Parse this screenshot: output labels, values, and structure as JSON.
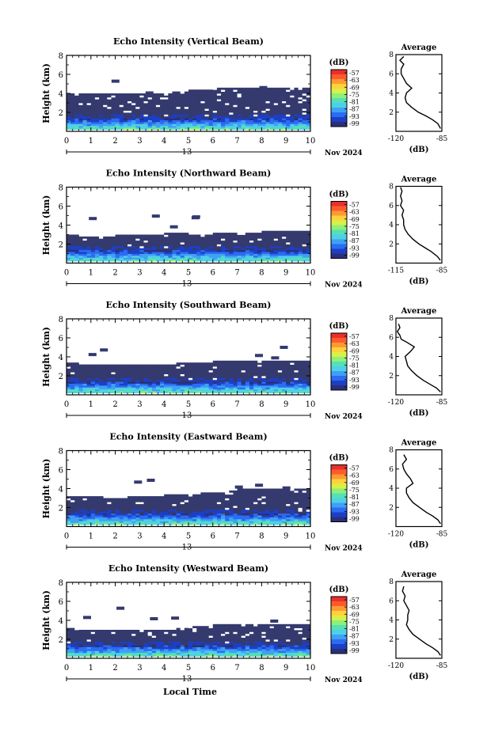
{
  "figure": {
    "time_axis_label": "Local Time",
    "date_day": "13",
    "date_month_year": "Nov 2024",
    "colorbar_unit": "(dB)",
    "avg_title": "Average",
    "avg_unit": "(dB)"
  },
  "colorbar": {
    "tick_labels": [
      "-57",
      "-63",
      "-69",
      "-75",
      "-81",
      "-87",
      "-93",
      "-99"
    ],
    "colors": [
      "#2b2f7a",
      "#1d3fc4",
      "#2b6cf2",
      "#3fa0f5",
      "#4ed0e8",
      "#56e0b5",
      "#8ef078",
      "#d8f048",
      "#ffd23c",
      "#ff9a32",
      "#ff5a2e",
      "#e8302a"
    ],
    "mask_color": "#343a6e"
  },
  "chart_data": [
    {
      "type": "heatmap",
      "title": "Echo Intensity (Vertical Beam)",
      "ylabel": "Height (km)",
      "x_ticks": [
        "0",
        "1",
        "2",
        "3",
        "4",
        "5",
        "6",
        "7",
        "8",
        "9",
        "10"
      ],
      "y_ticks": [
        "2",
        "4",
        "6",
        "8"
      ],
      "xlim": [
        0,
        10
      ],
      "ylim": [
        0,
        8
      ],
      "clim": [
        -99,
        -57
      ],
      "echo_top_km": [
        [
          0,
          4.0
        ],
        [
          0.5,
          4.0
        ],
        [
          1,
          3.9
        ],
        [
          1.5,
          3.9
        ],
        [
          2,
          3.9
        ],
        [
          2.5,
          3.9
        ],
        [
          3,
          3.9
        ],
        [
          3.5,
          4.0
        ],
        [
          4,
          3.9
        ],
        [
          4.5,
          4.1
        ],
        [
          5,
          4.2
        ],
        [
          5.5,
          4.4
        ],
        [
          6,
          4.4
        ],
        [
          6.5,
          4.5
        ],
        [
          7,
          4.5
        ],
        [
          7.5,
          4.5
        ],
        [
          8,
          4.5
        ],
        [
          8.5,
          4.6
        ],
        [
          9,
          4.6
        ],
        [
          9.5,
          4.6
        ],
        [
          10,
          4.6
        ]
      ],
      "avg_profile": {
        "xlim": [
          -120,
          -85
        ],
        "x_ticks": [
          "-120",
          "-85"
        ],
        "y_ticks": [
          "2",
          "4",
          "6",
          "8"
        ],
        "ylim": [
          0,
          8
        ],
        "points": [
          [
            -86,
            0.3
          ],
          [
            -88,
            0.8
          ],
          [
            -92,
            1.2
          ],
          [
            -97,
            1.6
          ],
          [
            -103,
            2.0
          ],
          [
            -108,
            2.5
          ],
          [
            -112,
            3.0
          ],
          [
            -113,
            3.5
          ],
          [
            -112,
            4.0
          ],
          [
            -108,
            4.5
          ],
          [
            -112,
            5.0
          ],
          [
            -114,
            5.5
          ],
          [
            -116,
            6.0
          ],
          [
            -116,
            6.5
          ],
          [
            -114,
            7.0
          ],
          [
            -117,
            7.4
          ],
          [
            -114,
            7.8
          ]
        ]
      }
    },
    {
      "type": "heatmap",
      "title": "Echo Intensity (Northward Beam)",
      "ylabel": "Height (km)",
      "x_ticks": [
        "0",
        "1",
        "2",
        "3",
        "4",
        "5",
        "6",
        "7",
        "8",
        "9",
        "10"
      ],
      "y_ticks": [
        "2",
        "4",
        "6",
        "8"
      ],
      "xlim": [
        0,
        10
      ],
      "ylim": [
        0,
        8
      ],
      "clim": [
        -99,
        -57
      ],
      "echo_top_km": [
        [
          0,
          2.9
        ],
        [
          0.5,
          2.8
        ],
        [
          1,
          2.8
        ],
        [
          1.5,
          2.8
        ],
        [
          2,
          2.8
        ],
        [
          2.5,
          2.9
        ],
        [
          3,
          2.9
        ],
        [
          3.5,
          3.0
        ],
        [
          4,
          3.0
        ],
        [
          4.5,
          3.1
        ],
        [
          5,
          3.0
        ],
        [
          5.5,
          3.0
        ],
        [
          6,
          3.0
        ],
        [
          6.5,
          3.1
        ],
        [
          7,
          3.1
        ],
        [
          7.5,
          3.2
        ],
        [
          8,
          3.2
        ],
        [
          8.5,
          3.3
        ],
        [
          9,
          3.3
        ],
        [
          9.5,
          3.3
        ],
        [
          10,
          3.3
        ]
      ],
      "avg_profile": {
        "xlim": [
          -115,
          -85
        ],
        "x_ticks": [
          "-115",
          "-85"
        ],
        "y_ticks": [
          "2",
          "4",
          "6",
          "8"
        ],
        "ylim": [
          0,
          8
        ],
        "points": [
          [
            -86,
            0.3
          ],
          [
            -88,
            0.7
          ],
          [
            -92,
            1.2
          ],
          [
            -96,
            1.6
          ],
          [
            -100,
            2.0
          ],
          [
            -104,
            2.5
          ],
          [
            -107,
            3.0
          ],
          [
            -109,
            3.5
          ],
          [
            -110,
            4.0
          ],
          [
            -110,
            4.5
          ],
          [
            -111,
            5.0
          ],
          [
            -110,
            5.5
          ],
          [
            -112,
            6.0
          ],
          [
            -111,
            6.5
          ],
          [
            -112,
            7.0
          ],
          [
            -111,
            7.5
          ],
          [
            -112,
            7.9
          ]
        ]
      }
    },
    {
      "type": "heatmap",
      "title": "Echo Intensity (Southward Beam)",
      "ylabel": "Height (km)",
      "x_ticks": [
        "0",
        "1",
        "2",
        "3",
        "4",
        "5",
        "6",
        "7",
        "8",
        "9",
        "10"
      ],
      "y_ticks": [
        "2",
        "4",
        "6",
        "8"
      ],
      "xlim": [
        0,
        10
      ],
      "ylim": [
        0,
        8
      ],
      "clim": [
        -99,
        -57
      ],
      "echo_top_km": [
        [
          0,
          3.3
        ],
        [
          0.5,
          3.2
        ],
        [
          1,
          3.2
        ],
        [
          1.5,
          3.2
        ],
        [
          2,
          3.2
        ],
        [
          2.5,
          3.2
        ],
        [
          3,
          3.2
        ],
        [
          3.5,
          3.2
        ],
        [
          4,
          3.2
        ],
        [
          4.5,
          3.2
        ],
        [
          5,
          3.3
        ],
        [
          5.5,
          3.4
        ],
        [
          6,
          3.4
        ],
        [
          6.5,
          3.5
        ],
        [
          7,
          3.5
        ],
        [
          7.5,
          3.5
        ],
        [
          8,
          3.5
        ],
        [
          8.5,
          3.5
        ],
        [
          9,
          3.5
        ],
        [
          9.5,
          3.5
        ],
        [
          10,
          3.5
        ]
      ],
      "avg_profile": {
        "xlim": [
          -120,
          -85
        ],
        "x_ticks": [
          "-120",
          "-85"
        ],
        "y_ticks": [
          "2",
          "4",
          "6",
          "8"
        ],
        "ylim": [
          0,
          8
        ],
        "points": [
          [
            -86,
            0.3
          ],
          [
            -89,
            0.7
          ],
          [
            -94,
            1.1
          ],
          [
            -99,
            1.5
          ],
          [
            -104,
            2.0
          ],
          [
            -108,
            2.5
          ],
          [
            -111,
            3.0
          ],
          [
            -112,
            3.5
          ],
          [
            -113,
            4.0
          ],
          [
            -109,
            4.5
          ],
          [
            -106,
            5.0
          ],
          [
            -112,
            5.5
          ],
          [
            -116,
            5.8
          ],
          [
            -117,
            6.2
          ],
          [
            -119,
            6.6
          ],
          [
            -117,
            7.0
          ],
          [
            -118,
            7.4
          ]
        ]
      }
    },
    {
      "type": "heatmap",
      "title": "Echo Intensity (Eastward Beam)",
      "ylabel": "Height (km)",
      "x_ticks": [
        "0",
        "1",
        "2",
        "3",
        "4",
        "5",
        "6",
        "7",
        "8",
        "9",
        "10"
      ],
      "y_ticks": [
        "2",
        "4",
        "6",
        "8"
      ],
      "xlim": [
        0,
        10
      ],
      "ylim": [
        0,
        8
      ],
      "clim": [
        -99,
        -57
      ],
      "echo_top_km": [
        [
          0,
          3.2
        ],
        [
          0.5,
          3.1
        ],
        [
          1,
          3.1
        ],
        [
          1.5,
          3.0
        ],
        [
          2,
          3.0
        ],
        [
          2.5,
          3.0
        ],
        [
          3,
          3.1
        ],
        [
          3.5,
          3.1
        ],
        [
          4,
          3.2
        ],
        [
          4.5,
          3.3
        ],
        [
          5,
          3.4
        ],
        [
          5.5,
          3.4
        ],
        [
          6,
          3.5
        ],
        [
          6.5,
          3.6
        ],
        [
          7,
          3.8
        ],
        [
          7.5,
          3.9
        ],
        [
          8,
          4.0
        ],
        [
          8.5,
          4.0
        ],
        [
          9,
          4.0
        ],
        [
          9.5,
          4.0
        ],
        [
          10,
          4.0
        ]
      ],
      "avg_profile": {
        "xlim": [
          -120,
          -85
        ],
        "x_ticks": [
          "-120",
          "-85"
        ],
        "y_ticks": [
          "2",
          "4",
          "6",
          "8"
        ],
        "ylim": [
          0,
          8
        ],
        "points": [
          [
            -86,
            0.3
          ],
          [
            -88,
            0.7
          ],
          [
            -92,
            1.1
          ],
          [
            -97,
            1.5
          ],
          [
            -102,
            2.0
          ],
          [
            -107,
            2.5
          ],
          [
            -110,
            3.0
          ],
          [
            -112,
            3.5
          ],
          [
            -112,
            4.0
          ],
          [
            -107,
            4.5
          ],
          [
            -109,
            5.0
          ],
          [
            -112,
            5.5
          ],
          [
            -114,
            6.0
          ],
          [
            -115,
            6.5
          ],
          [
            -112,
            7.0
          ],
          [
            -114,
            7.5
          ]
        ]
      }
    },
    {
      "type": "heatmap",
      "title": "Echo Intensity (Westward Beam)",
      "ylabel": "Height (km)",
      "xlabel": "Local Time",
      "x_ticks": [
        "0",
        "1",
        "2",
        "3",
        "4",
        "5",
        "6",
        "7",
        "8",
        "9",
        "10"
      ],
      "y_ticks": [
        "2",
        "4",
        "6",
        "8"
      ],
      "xlim": [
        0,
        10
      ],
      "ylim": [
        0,
        8
      ],
      "clim": [
        -99,
        -57
      ],
      "echo_top_km": [
        [
          0,
          3.1
        ],
        [
          0.5,
          3.0
        ],
        [
          1,
          3.0
        ],
        [
          1.5,
          3.0
        ],
        [
          2,
          3.0
        ],
        [
          2.5,
          3.0
        ],
        [
          3,
          3.0
        ],
        [
          3.5,
          3.0
        ],
        [
          4,
          2.9
        ],
        [
          4.5,
          3.0
        ],
        [
          5,
          3.2
        ],
        [
          5.5,
          3.3
        ],
        [
          6,
          3.4
        ],
        [
          6.5,
          3.5
        ],
        [
          7,
          3.5
        ],
        [
          7.5,
          3.5
        ],
        [
          8,
          3.5
        ],
        [
          8.5,
          3.5
        ],
        [
          9,
          3.5
        ],
        [
          9.5,
          3.5
        ],
        [
          10,
          3.5
        ]
      ],
      "avg_profile": {
        "xlim": [
          -120,
          -85
        ],
        "x_ticks": [
          "-120",
          "-85"
        ],
        "y_ticks": [
          "2",
          "4",
          "6",
          "8"
        ],
        "ylim": [
          0,
          8
        ],
        "points": [
          [
            -86,
            0.3
          ],
          [
            -88,
            0.7
          ],
          [
            -92,
            1.1
          ],
          [
            -97,
            1.5
          ],
          [
            -102,
            2.0
          ],
          [
            -107,
            2.5
          ],
          [
            -110,
            3.0
          ],
          [
            -112,
            3.5
          ],
          [
            -111,
            4.0
          ],
          [
            -111,
            4.5
          ],
          [
            -110,
            5.0
          ],
          [
            -112,
            5.5
          ],
          [
            -114,
            6.0
          ],
          [
            -113,
            6.5
          ],
          [
            -115,
            7.0
          ],
          [
            -114,
            7.5
          ]
        ]
      }
    }
  ]
}
